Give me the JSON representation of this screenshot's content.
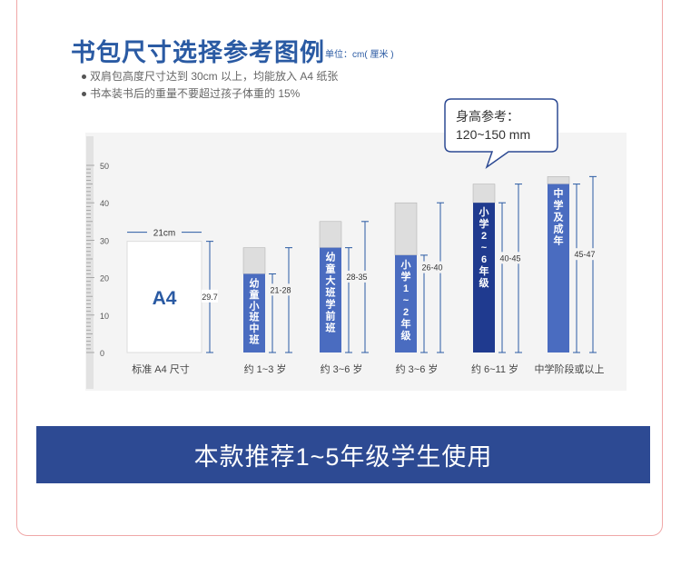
{
  "title": "书包尺寸选择参考图例",
  "unit": "单位：cm( 厘米 )",
  "notes": [
    "双肩包高度尺寸达到 30cm 以上，均能放入 A4 纸张",
    "书本装书后的重量不要超过孩子体重的 15%"
  ],
  "bubble": {
    "line1": "身高参考：",
    "line2": "120~150 mm"
  },
  "chart_data": {
    "type": "bar",
    "ylim": [
      0,
      50
    ],
    "y_ticks": [
      "0",
      "10",
      "20",
      "30",
      "40",
      "50"
    ],
    "a4": {
      "label": "A4",
      "width_label": "21cm",
      "height": 29.7,
      "height_label": "29.7",
      "caption": "标准 A4 尺寸"
    },
    "bars": [
      {
        "text": "幼童小班中班",
        "caption": "约 1~3 岁",
        "min": 21,
        "max": 28,
        "range_label": "21-28",
        "highlight": false
      },
      {
        "text": "幼童大班学前班",
        "caption": "约 3~6 岁",
        "min": 28,
        "max": 35,
        "range_label": "28-35",
        "highlight": false
      },
      {
        "text": "小学1~2年级",
        "caption": "约 3~6 岁",
        "min": 26,
        "max": 40,
        "range_label": "26-40",
        "highlight": false
      },
      {
        "text": "小学2~6年级",
        "caption": "约 6~11 岁",
        "min": 40,
        "max": 45,
        "range_label": "40-45",
        "highlight": true
      },
      {
        "text": "中学及成年",
        "caption": "中学阶段或以上",
        "min": 45,
        "max": 47,
        "range_label": "45-47",
        "highlight": false
      }
    ]
  },
  "banner": "本款推荐1~5年级学生使用",
  "colors": {
    "bar": "#4a6cc0",
    "bar_highlight": "#1f3a8f",
    "bar_cap": "#dddddd",
    "title": "#2a5aa3",
    "banner": "#2d4a93"
  }
}
